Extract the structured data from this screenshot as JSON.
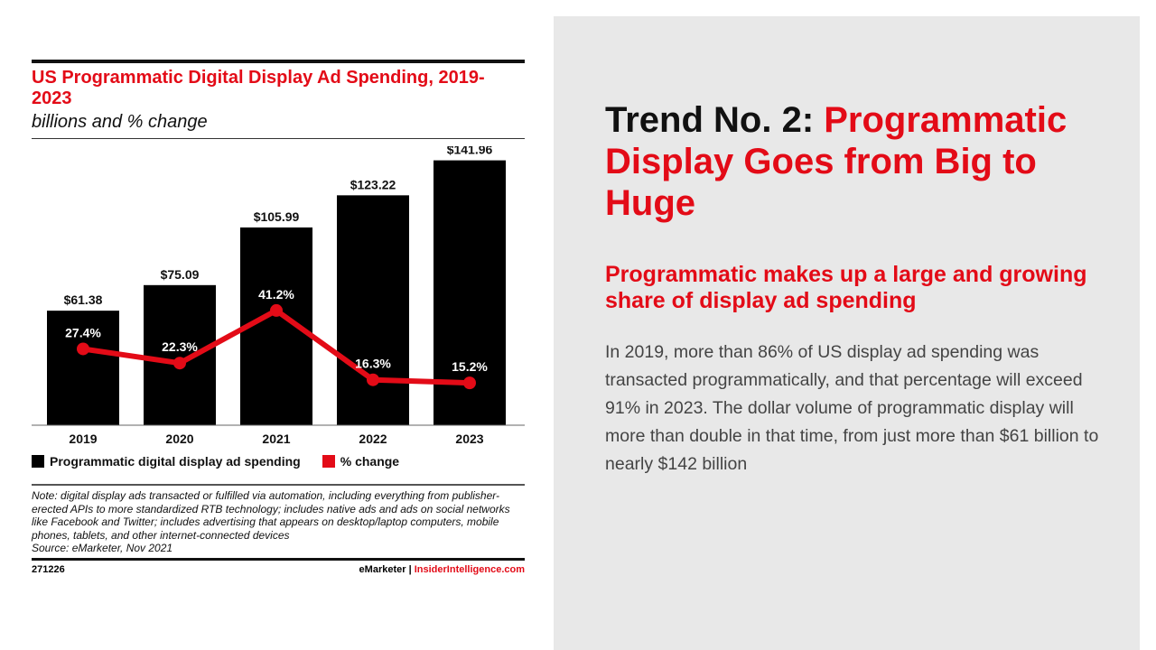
{
  "chart_data": {
    "type": "bar+line",
    "title": "US Programmatic Digital Display Ad Spending, 2019-2023",
    "subtitle": "billions and % change",
    "categories": [
      "2019",
      "2020",
      "2021",
      "2022",
      "2023"
    ],
    "series": [
      {
        "name": "Programmatic digital display ad spending",
        "type": "bar",
        "values": [
          61.38,
          75.09,
          105.99,
          123.22,
          141.96
        ],
        "labels": [
          "$61.38",
          "$75.09",
          "$105.99",
          "$123.22",
          "$141.96"
        ],
        "color": "#000000"
      },
      {
        "name": "% change",
        "type": "line",
        "values": [
          27.4,
          22.3,
          41.2,
          16.3,
          15.2
        ],
        "labels": [
          "27.4%",
          "22.3%",
          "41.2%",
          "16.3%",
          "15.2%"
        ],
        "color": "#e30b17"
      }
    ],
    "ylim": [
      0,
      150
    ],
    "ylim_pct": [
      0,
      100
    ],
    "grid": false,
    "legend": "bottom-left",
    "note": "Note: digital display ads transacted or fulfilled via automation, including everything from publisher-erected APIs to more standardized RTB technology; includes native ads and ads on social networks like Facebook and Twitter; includes advertising that appears on desktop/laptop computers, mobile phones, tablets, and other internet-connected devices",
    "source": "Source: eMarketer, Nov 2021",
    "chart_id": "271226",
    "brand": "eMarketer",
    "brand_sep": " | ",
    "brand_site": "InsiderIntelligence.com"
  },
  "slide": {
    "heading_prefix": "Trend No. 2: ",
    "heading_highlight": "Programmatic Display Goes from Big to Huge",
    "subheading": "Programmatic makes up a large and growing share of display ad spending",
    "body": "In 2019, more than 86% of US display ad spending was transacted programmatically,  and that percentage will exceed 91% in 2023. The dollar volume of programmatic display will more than double in that time, from just more than $61 billion to nearly $142 billion"
  },
  "colors": {
    "accent": "#e30b17",
    "panel": "#e8e8e8"
  }
}
